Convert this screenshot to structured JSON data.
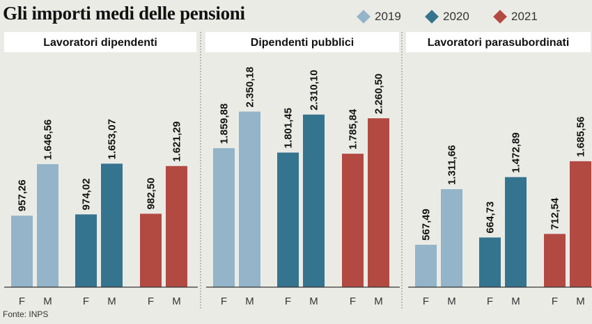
{
  "title": "Gli importi medi delle pensioni",
  "source": "Fonte: INPS",
  "legend": [
    {
      "label": "2019",
      "color": "#93b4c9"
    },
    {
      "label": "2020",
      "color": "#35748f"
    },
    {
      "label": "2021",
      "color": "#b24a42"
    }
  ],
  "chart_data": {
    "type": "bar",
    "ylim": [
      0,
      2500
    ],
    "grid": false,
    "legend_position": "top-right",
    "panels": [
      {
        "title": "Lavoratori dipendenti",
        "groups": [
          {
            "year": "2019",
            "categories": [
              "F",
              "M"
            ],
            "values": [
              957.26,
              1646.56
            ],
            "labels": [
              "957,26",
              "1.646,56"
            ]
          },
          {
            "year": "2020",
            "categories": [
              "F",
              "M"
            ],
            "values": [
              974.02,
              1653.07
            ],
            "labels": [
              "974,02",
              "1.653,07"
            ]
          },
          {
            "year": "2021",
            "categories": [
              "F",
              "M"
            ],
            "values": [
              982.5,
              1621.29
            ],
            "labels": [
              "982,50",
              "1.621,29"
            ]
          }
        ]
      },
      {
        "title": "Dipendenti pubblici",
        "groups": [
          {
            "year": "2019",
            "categories": [
              "F",
              "M"
            ],
            "values": [
              1859.88,
              2350.18
            ],
            "labels": [
              "1.859,88",
              "2.350,18"
            ]
          },
          {
            "year": "2020",
            "categories": [
              "F",
              "M"
            ],
            "values": [
              1801.45,
              2310.1
            ],
            "labels": [
              "1.801,45",
              "2.310,10"
            ]
          },
          {
            "year": "2021",
            "categories": [
              "F",
              "M"
            ],
            "values": [
              1785.84,
              2260.5
            ],
            "labels": [
              "1.785,84",
              "2.260,50"
            ]
          }
        ]
      },
      {
        "title": "Lavoratori parasubordinati",
        "groups": [
          {
            "year": "2019",
            "categories": [
              "F",
              "M"
            ],
            "values": [
              567.49,
              1311.66
            ],
            "labels": [
              "567,49",
              "1.311,66"
            ]
          },
          {
            "year": "2020",
            "categories": [
              "F",
              "M"
            ],
            "values": [
              664.73,
              1472.89
            ],
            "labels": [
              "664,73",
              "1.472,89"
            ]
          },
          {
            "year": "2021",
            "categories": [
              "F",
              "M"
            ],
            "values": [
              712.54,
              1685.56
            ],
            "labels": [
              "712,54",
              "1.685,56"
            ]
          }
        ]
      }
    ]
  }
}
